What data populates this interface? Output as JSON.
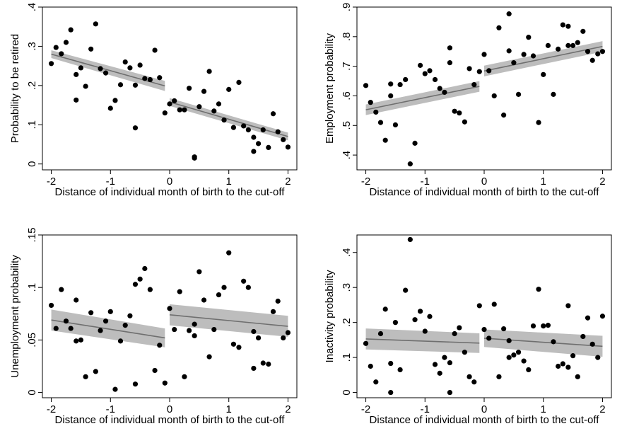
{
  "chart_data": [
    {
      "type": "scatter",
      "title": "",
      "xlabel": "Distance of individual month of birth to the cut-off",
      "ylabel": "Probability to be retired",
      "xlim": [
        -2.15,
        2.15
      ],
      "ylim": [
        -0.015,
        0.4
      ],
      "x_ticks": [
        -2,
        -1,
        0,
        1,
        2
      ],
      "y_ticks": [
        0,
        0.1,
        0.2,
        0.3,
        0.4
      ],
      "y_tick_labels": [
        "0",
        ".1",
        ".2",
        ".3",
        ".4"
      ],
      "grid": false,
      "points": [
        [
          -2.0,
          0.256
        ],
        [
          -1.92,
          0.297
        ],
        [
          -1.83,
          0.281
        ],
        [
          -1.75,
          0.31
        ],
        [
          -1.67,
          0.342
        ],
        [
          -1.58,
          0.228
        ],
        [
          -1.58,
          0.163
        ],
        [
          -1.5,
          0.245
        ],
        [
          -1.42,
          0.198
        ],
        [
          -1.33,
          0.293
        ],
        [
          -1.25,
          0.357
        ],
        [
          -1.17,
          0.243
        ],
        [
          -1.08,
          0.232
        ],
        [
          -1.0,
          0.142
        ],
        [
          -0.92,
          0.162
        ],
        [
          -0.83,
          0.202
        ],
        [
          -0.75,
          0.26
        ],
        [
          -0.67,
          0.245
        ],
        [
          -0.58,
          0.092
        ],
        [
          -0.58,
          0.201
        ],
        [
          -0.5,
          0.252
        ],
        [
          -0.42,
          0.218
        ],
        [
          -0.33,
          0.215
        ],
        [
          -0.25,
          0.29
        ],
        [
          -0.17,
          0.22
        ],
        [
          -0.08,
          0.13
        ],
        [
          0.0,
          0.153
        ],
        [
          0.08,
          0.161
        ],
        [
          0.17,
          0.138
        ],
        [
          0.25,
          0.138
        ],
        [
          0.33,
          0.193
        ],
        [
          0.42,
          0.015
        ],
        [
          0.42,
          0.018
        ],
        [
          0.5,
          0.146
        ],
        [
          0.58,
          0.185
        ],
        [
          0.67,
          0.236
        ],
        [
          0.75,
          0.135
        ],
        [
          0.83,
          0.153
        ],
        [
          0.92,
          0.112
        ],
        [
          1.0,
          0.19
        ],
        [
          1.08,
          0.093
        ],
        [
          1.17,
          0.208
        ],
        [
          1.25,
          0.097
        ],
        [
          1.33,
          0.087
        ],
        [
          1.42,
          0.068
        ],
        [
          1.42,
          0.032
        ],
        [
          1.5,
          0.052
        ],
        [
          1.58,
          0.087
        ],
        [
          1.67,
          0.042
        ],
        [
          1.75,
          0.128
        ],
        [
          1.83,
          0.082
        ],
        [
          1.92,
          0.062
        ],
        [
          2.0,
          0.043
        ]
      ],
      "fit_left": {
        "x": [
          -2.0,
          -0.08
        ],
        "y": [
          0.28,
          0.199
        ],
        "ci_half": [
          0.01,
          0.013
        ]
      },
      "fit_right": {
        "x": [
          0.0,
          2.0
        ],
        "y": [
          0.158,
          0.07
        ],
        "ci_half": [
          0.01,
          0.01
        ]
      }
    },
    {
      "type": "scatter",
      "title": "",
      "xlabel": "Distance of individual month of birth to the cut-off",
      "ylabel": "Employment probability",
      "xlim": [
        -2.15,
        2.15
      ],
      "ylim": [
        0.35,
        0.9
      ],
      "x_ticks": [
        -2,
        -1,
        0,
        1,
        2
      ],
      "y_ticks": [
        0.4,
        0.5,
        0.6,
        0.7,
        0.8,
        0.9
      ],
      "y_tick_labels": [
        ".4",
        ".5",
        ".6",
        ".7",
        ".8",
        ".9"
      ],
      "grid": false,
      "points": [
        [
          -2.0,
          0.635
        ],
        [
          -1.92,
          0.578
        ],
        [
          -1.83,
          0.545
        ],
        [
          -1.75,
          0.51
        ],
        [
          -1.67,
          0.45
        ],
        [
          -1.58,
          0.64
        ],
        [
          -1.58,
          0.6
        ],
        [
          -1.5,
          0.502
        ],
        [
          -1.42,
          0.638
        ],
        [
          -1.33,
          0.655
        ],
        [
          -1.25,
          0.37
        ],
        [
          -1.17,
          0.44
        ],
        [
          -1.08,
          0.703
        ],
        [
          -1.0,
          0.675
        ],
        [
          -0.92,
          0.685
        ],
        [
          -0.83,
          0.655
        ],
        [
          -0.75,
          0.625
        ],
        [
          -0.67,
          0.612
        ],
        [
          -0.58,
          0.762
        ],
        [
          -0.58,
          0.712
        ],
        [
          -0.5,
          0.548
        ],
        [
          -0.42,
          0.542
        ],
        [
          -0.33,
          0.512
        ],
        [
          -0.25,
          0.692
        ],
        [
          -0.17,
          0.638
        ],
        [
          -0.08,
          0.682
        ],
        [
          0.0,
          0.74
        ],
        [
          0.08,
          0.685
        ],
        [
          0.17,
          0.6
        ],
        [
          0.25,
          0.83
        ],
        [
          0.33,
          0.535
        ],
        [
          0.42,
          0.877
        ],
        [
          0.42,
          0.752
        ],
        [
          0.5,
          0.712
        ],
        [
          0.58,
          0.605
        ],
        [
          0.67,
          0.74
        ],
        [
          0.75,
          0.798
        ],
        [
          0.83,
          0.735
        ],
        [
          0.92,
          0.51
        ],
        [
          1.0,
          0.672
        ],
        [
          1.08,
          0.77
        ],
        [
          1.17,
          0.605
        ],
        [
          1.25,
          0.758
        ],
        [
          1.33,
          0.84
        ],
        [
          1.42,
          0.835
        ],
        [
          1.42,
          0.77
        ],
        [
          1.5,
          0.77
        ],
        [
          1.58,
          0.78
        ],
        [
          1.67,
          0.818
        ],
        [
          1.75,
          0.75
        ],
        [
          1.83,
          0.72
        ],
        [
          1.92,
          0.742
        ],
        [
          2.0,
          0.75
        ]
      ],
      "fit_left": {
        "x": [
          -2.0,
          -0.08
        ],
        "y": [
          0.553,
          0.632
        ],
        "ci_half": [
          0.018,
          0.018
        ]
      },
      "fit_right": {
        "x": [
          0.0,
          2.0
        ],
        "y": [
          0.684,
          0.767
        ],
        "ci_half": [
          0.018,
          0.018
        ]
      }
    },
    {
      "type": "scatter",
      "title": "",
      "xlabel": "Distance of individual month of birth to the cut-off",
      "ylabel": "Unemployment probability",
      "xlim": [
        -2.15,
        2.15
      ],
      "ylim": [
        -0.005,
        0.15
      ],
      "x_ticks": [
        -2,
        -1,
        0,
        1,
        2
      ],
      "y_ticks": [
        0,
        0.05,
        0.1,
        0.15
      ],
      "y_tick_labels": [
        "0",
        ".05",
        ".1",
        ".15"
      ],
      "grid": false,
      "points": [
        [
          -2.0,
          0.083
        ],
        [
          -1.92,
          0.061
        ],
        [
          -1.83,
          0.098
        ],
        [
          -1.75,
          0.068
        ],
        [
          -1.67,
          0.061
        ],
        [
          -1.58,
          0.088
        ],
        [
          -1.58,
          0.049
        ],
        [
          -1.5,
          0.05
        ],
        [
          -1.42,
          0.015
        ],
        [
          -1.33,
          0.076
        ],
        [
          -1.25,
          0.02
        ],
        [
          -1.17,
          0.059
        ],
        [
          -1.08,
          0.068
        ],
        [
          -1.0,
          0.077
        ],
        [
          -0.92,
          0.003
        ],
        [
          -0.83,
          0.049
        ],
        [
          -0.75,
          0.064
        ],
        [
          -0.67,
          0.073
        ],
        [
          -0.58,
          0.008
        ],
        [
          -0.58,
          0.103
        ],
        [
          -0.5,
          0.108
        ],
        [
          -0.42,
          0.118
        ],
        [
          -0.33,
          0.098
        ],
        [
          -0.25,
          0.021
        ],
        [
          -0.17,
          0.045
        ],
        [
          -0.08,
          0.009
        ],
        [
          0.0,
          0.08
        ],
        [
          0.08,
          0.06
        ],
        [
          0.17,
          0.096
        ],
        [
          0.25,
          0.015
        ],
        [
          0.33,
          0.059
        ],
        [
          0.42,
          0.054
        ],
        [
          0.42,
          0.065
        ],
        [
          0.5,
          0.115
        ],
        [
          0.58,
          0.088
        ],
        [
          0.67,
          0.034
        ],
        [
          0.75,
          0.06
        ],
        [
          0.83,
          0.093
        ],
        [
          0.92,
          0.1
        ],
        [
          1.0,
          0.133
        ],
        [
          1.08,
          0.046
        ],
        [
          1.17,
          0.043
        ],
        [
          1.25,
          0.106
        ],
        [
          1.33,
          0.1
        ],
        [
          1.42,
          0.023
        ],
        [
          1.42,
          0.058
        ],
        [
          1.5,
          0.052
        ],
        [
          1.58,
          0.028
        ],
        [
          1.67,
          0.027
        ],
        [
          1.75,
          0.077
        ],
        [
          1.83,
          0.087
        ],
        [
          1.92,
          0.052
        ],
        [
          2.0,
          0.057
        ]
      ],
      "fit_left": {
        "x": [
          -2.0,
          -0.08
        ],
        "y": [
          0.069,
          0.052
        ],
        "ci_half": [
          0.01,
          0.009
        ]
      },
      "fit_right": {
        "x": [
          0.0,
          2.0
        ],
        "y": [
          0.074,
          0.063
        ],
        "ci_half": [
          0.01,
          0.01
        ]
      }
    },
    {
      "type": "scatter",
      "title": "",
      "xlabel": "Distance of individual month of birth to the cut-off",
      "ylabel": "Inactivity probability",
      "xlim": [
        -2.15,
        2.15
      ],
      "ylim": [
        -0.015,
        0.45
      ],
      "x_ticks": [
        -2,
        -1,
        0,
        1,
        2
      ],
      "y_ticks": [
        0,
        0.1,
        0.2,
        0.3,
        0.4
      ],
      "y_tick_labels": [
        "0",
        ".1",
        ".2",
        ".3",
        ".4"
      ],
      "grid": false,
      "points": [
        [
          -2.0,
          0.14
        ],
        [
          -1.92,
          0.075
        ],
        [
          -1.83,
          0.03
        ],
        [
          -1.75,
          0.168
        ],
        [
          -1.67,
          0.238
        ],
        [
          -1.58,
          0.083
        ],
        [
          -1.58,
          0.0
        ],
        [
          -1.5,
          0.2
        ],
        [
          -1.42,
          0.065
        ],
        [
          -1.33,
          0.292
        ],
        [
          -1.25,
          0.437
        ],
        [
          -1.17,
          0.208
        ],
        [
          -1.08,
          0.232
        ],
        [
          -1.0,
          0.175
        ],
        [
          -0.92,
          0.217
        ],
        [
          -0.83,
          0.08
        ],
        [
          -0.75,
          0.055
        ],
        [
          -0.67,
          0.1
        ],
        [
          -0.58,
          0.0
        ],
        [
          -0.58,
          0.085
        ],
        [
          -0.5,
          0.168
        ],
        [
          -0.42,
          0.185
        ],
        [
          -0.33,
          0.115
        ],
        [
          -0.25,
          0.045
        ],
        [
          -0.17,
          0.03
        ],
        [
          -0.08,
          0.248
        ],
        [
          0.0,
          0.18
        ],
        [
          0.08,
          0.155
        ],
        [
          0.17,
          0.252
        ],
        [
          0.25,
          0.045
        ],
        [
          0.33,
          0.182
        ],
        [
          0.42,
          0.148
        ],
        [
          0.42,
          0.1
        ],
        [
          0.5,
          0.107
        ],
        [
          0.58,
          0.115
        ],
        [
          0.67,
          0.09
        ],
        [
          0.75,
          0.065
        ],
        [
          0.83,
          0.19
        ],
        [
          0.92,
          0.295
        ],
        [
          1.0,
          0.19
        ],
        [
          1.08,
          0.192
        ],
        [
          1.17,
          0.145
        ],
        [
          1.25,
          0.075
        ],
        [
          1.33,
          0.082
        ],
        [
          1.42,
          0.248
        ],
        [
          1.42,
          0.072
        ],
        [
          1.5,
          0.105
        ],
        [
          1.58,
          0.045
        ],
        [
          1.67,
          0.16
        ],
        [
          1.75,
          0.213
        ],
        [
          1.83,
          0.138
        ],
        [
          1.92,
          0.1
        ],
        [
          2.0,
          0.218
        ]
      ],
      "fit_left": {
        "x": [
          -2.0,
          -0.08
        ],
        "y": [
          0.153,
          0.141
        ],
        "ci_half": [
          0.03,
          0.028
        ]
      },
      "fit_right": {
        "x": [
          0.0,
          2.0
        ],
        "y": [
          0.155,
          0.132
        ],
        "ci_half": [
          0.025,
          0.03
        ]
      }
    }
  ]
}
